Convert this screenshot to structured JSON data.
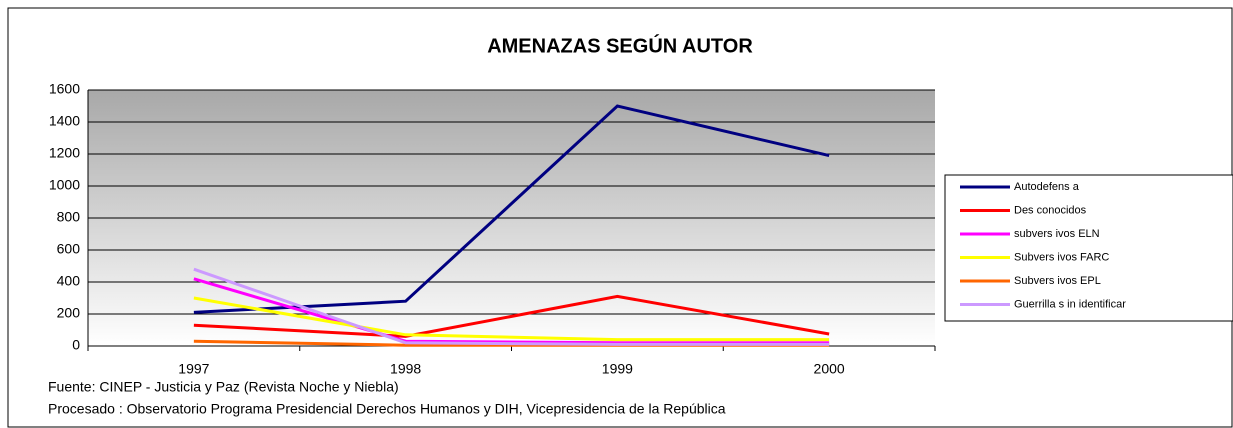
{
  "chart_data": {
    "type": "line",
    "title": "AMENAZAS SEGÚN AUTOR",
    "categories": [
      "1997",
      "1998",
      "1999",
      "2000"
    ],
    "series": [
      {
        "name": "Autodefens a",
        "color": "#000080",
        "values": [
          210,
          280,
          1500,
          1190
        ]
      },
      {
        "name": "Des conocidos",
        "color": "#ff0000",
        "values": [
          130,
          60,
          310,
          75
        ]
      },
      {
        "name": "subvers ivos ELN",
        "color": "#ff00ff",
        "values": [
          420,
          30,
          20,
          20
        ]
      },
      {
        "name": "Subvers ivos FARC",
        "color": "#ffff00",
        "values": [
          300,
          70,
          40,
          40
        ]
      },
      {
        "name": "Subvers ivos EPL",
        "color": "#ff6600",
        "values": [
          30,
          5,
          5,
          5
        ]
      },
      {
        "name": "Guerrilla s in identificar",
        "color": "#cc99ff",
        "values": [
          480,
          20,
          10,
          10
        ]
      }
    ],
    "ylim": [
      0,
      1600
    ],
    "yticks": [
      0,
      200,
      400,
      600,
      800,
      1000,
      1200,
      1400,
      1600
    ],
    "grid": true,
    "notes": [
      "Fuente: CINEP - Justicia  y Paz (Revista Noche y Niebla)",
      "Procesado : Observatorio Programa Presidencial Derechos Humanos y DIH, Vicepresidencia de la República"
    ]
  }
}
